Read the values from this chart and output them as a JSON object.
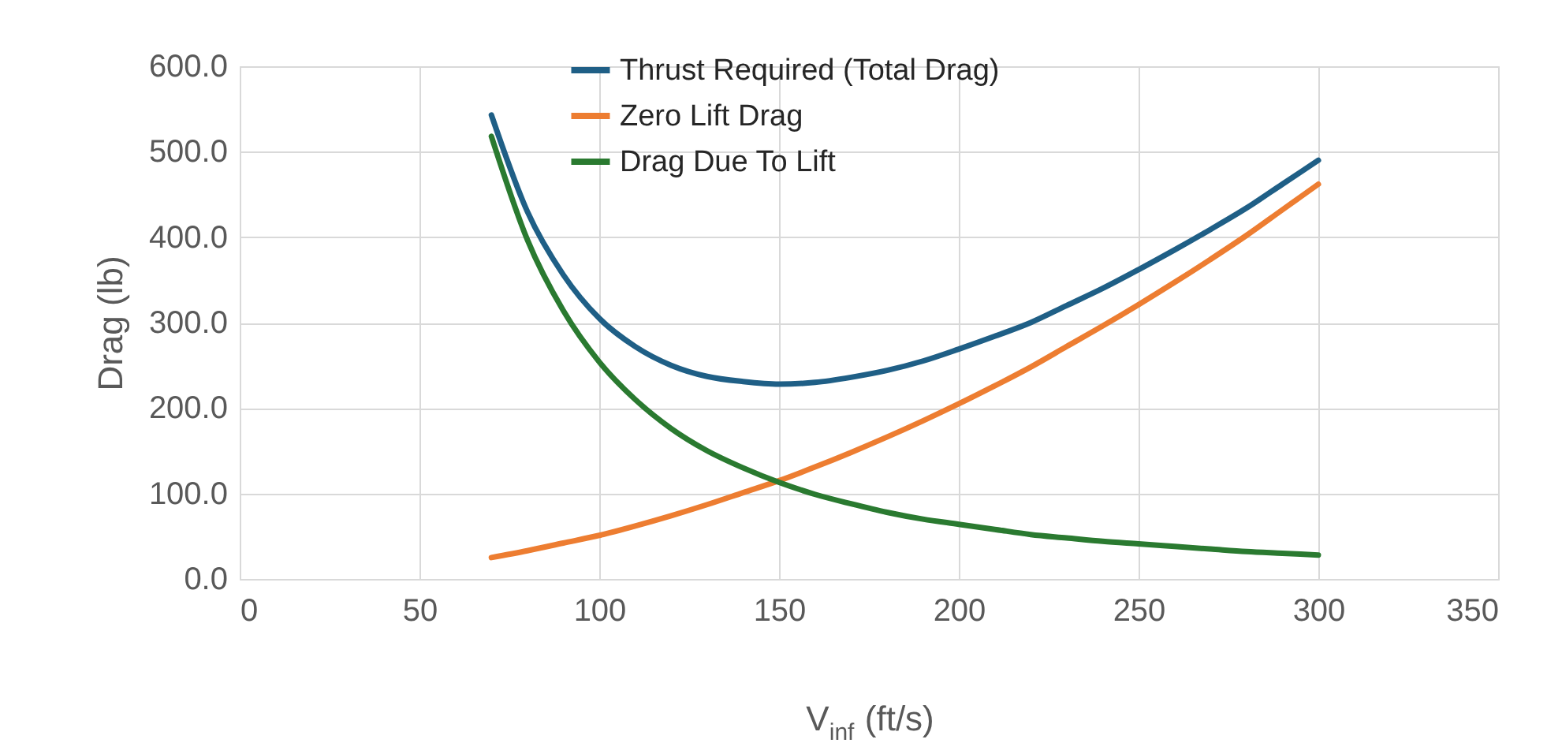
{
  "chart_data": {
    "type": "line",
    "xlabel": "V$_{inf}$ (ft/s)",
    "ylabel": "Drag (lb)",
    "x": [
      70,
      80,
      90,
      100,
      110,
      120,
      130,
      140,
      150,
      160,
      170,
      180,
      190,
      200,
      210,
      220,
      230,
      240,
      250,
      260,
      270,
      280,
      290,
      300
    ],
    "series": [
      {
        "name": "Thrust Required (Total Drag)",
        "color": "#1f5f86",
        "values": [
          543,
          430,
          356,
          305,
          272,
          250,
          237,
          231,
          228,
          230,
          236,
          244,
          255,
          269,
          284,
          300,
          320,
          340,
          362,
          385,
          409,
          434,
          462,
          490
        ]
      },
      {
        "name": "Zero Lift Drag",
        "color": "#ed7d31",
        "values": [
          25,
          33,
          42,
          51,
          62,
          74,
          87,
          101,
          115,
          131,
          148,
          166,
          185,
          205,
          226,
          248,
          272,
          296,
          321,
          347,
          374,
          402,
          432,
          462
        ]
      },
      {
        "name": "Drag Due To Lift",
        "color": "#2a7a30",
        "values": [
          518,
          397,
          314,
          254,
          210,
          176,
          150,
          130,
          113,
          99,
          88,
          78,
          70,
          64,
          58,
          52,
          48,
          44,
          41,
          38,
          35,
          32,
          30,
          28
        ]
      }
    ],
    "xlim": [
      0,
      350
    ],
    "xticks": [
      0,
      50,
      100,
      150,
      200,
      250,
      300,
      350
    ],
    "ylim": [
      0,
      600
    ],
    "yticks": [
      {
        "value": 0,
        "label": "0.0"
      },
      {
        "value": 100,
        "label": "100.0"
      },
      {
        "value": 200,
        "label": "200.0"
      },
      {
        "value": 300,
        "label": "300.0"
      },
      {
        "value": 400,
        "label": "400.0"
      },
      {
        "value": 500,
        "label": "500.0"
      },
      {
        "value": 600,
        "label": "600.0"
      }
    ],
    "grid": true,
    "legend": "top",
    "marker": "none",
    "line_style": "solid"
  }
}
